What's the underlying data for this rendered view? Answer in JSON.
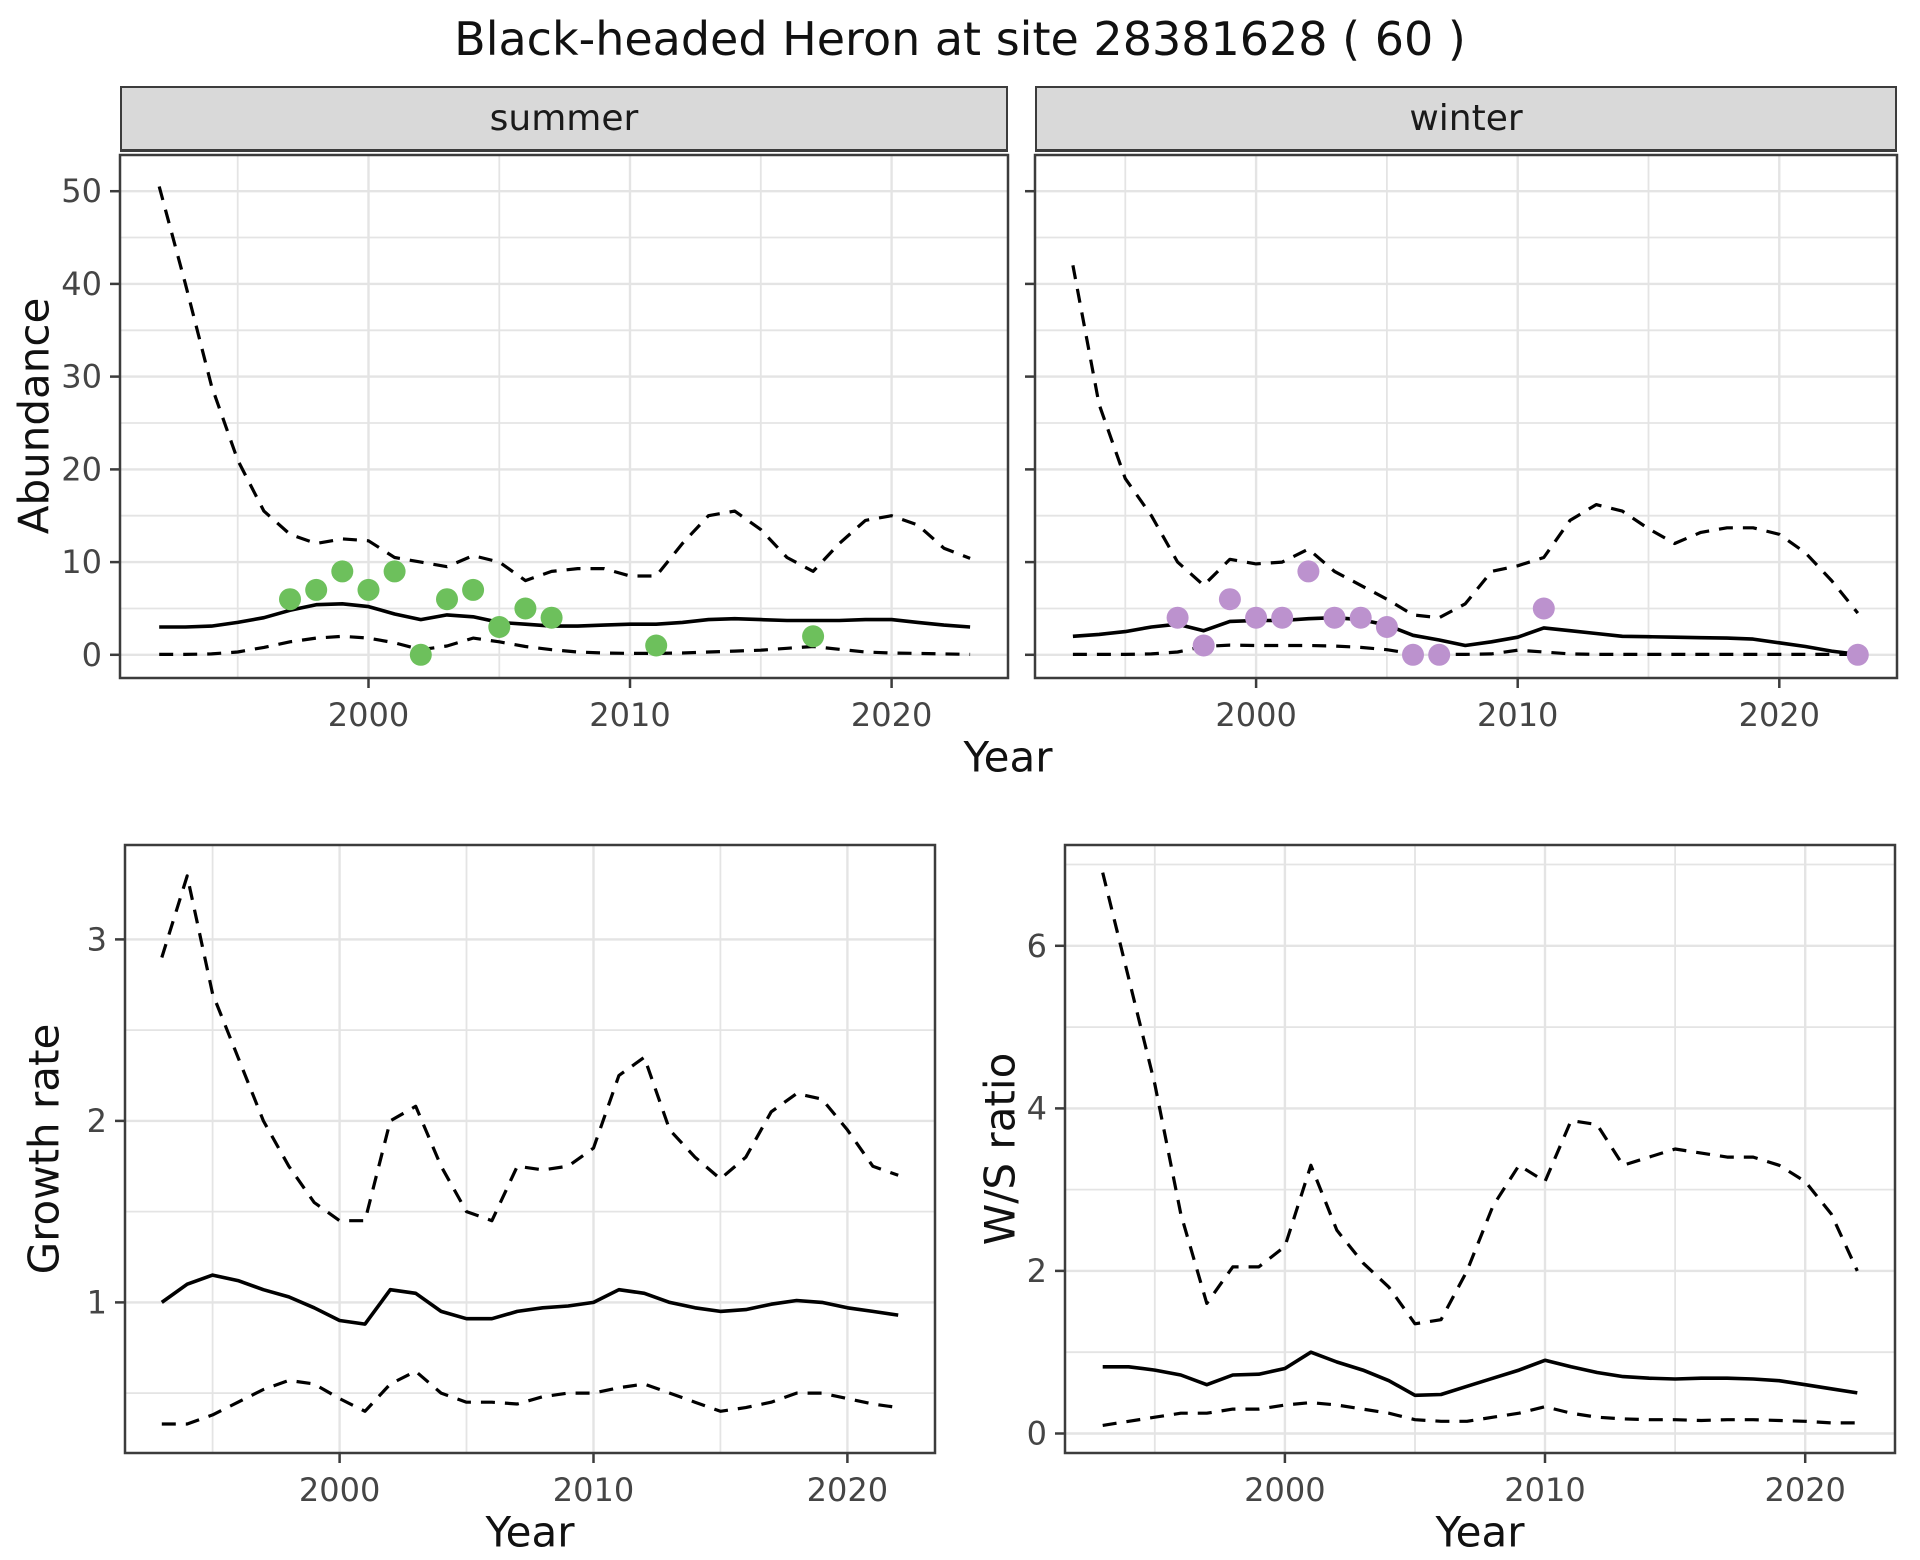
{
  "title": "Black-headed Heron at site 28381628 ( 60 )",
  "labels": {
    "year": "Year",
    "abundance": "Abundance",
    "growth_rate": "Growth rate",
    "ws_ratio": "W/S ratio",
    "facet_summer": "summer",
    "facet_winter": "winter"
  },
  "colors": {
    "summer_points": "#6DC05C",
    "winter_points": "#BC92CE",
    "line": "#000000",
    "grid": "#E4E4E4",
    "border": "#3C3C3C",
    "strip_bg": "#D9D9D9",
    "tick_label": "#454545",
    "strip_text": "#1A1A1A"
  },
  "chart_data": [
    {
      "name": "abundance-summer",
      "type": "line",
      "facet": "summer",
      "xlabel": "Year",
      "ylabel": "Abundance",
      "xlim": [
        1990.5,
        2024.45
      ],
      "ylim": [
        -2.5,
        53.9
      ],
      "xticks": [
        2000,
        2010,
        2020
      ],
      "yticks": [
        0,
        10,
        20,
        30,
        40,
        50
      ],
      "xminor": [
        1995,
        2005,
        2015
      ],
      "yminor": [
        5,
        15,
        25,
        35,
        45
      ],
      "show_ylabels": true,
      "x": [
        1992,
        1993,
        1994,
        1995,
        1996,
        1997,
        1998,
        1999,
        2000,
        2001,
        2002,
        2003,
        2004,
        2005,
        2006,
        2007,
        2008,
        2009,
        2010,
        2011,
        2012,
        2013,
        2014,
        2015,
        2016,
        2017,
        2018,
        2019,
        2020,
        2021,
        2022,
        2023
      ],
      "series": [
        {
          "name": "ci-upper",
          "style": "dashed",
          "values": [
            50.5,
            40,
            29,
            21,
            15.5,
            13,
            12,
            12.5,
            12.3,
            10.5,
            10,
            9.5,
            10.7,
            10,
            8,
            9,
            9.3,
            9.3,
            8.5,
            8.5,
            12,
            15,
            15.5,
            13.5,
            10.5,
            9,
            12,
            14.5,
            15,
            14,
            11.5,
            10.4
          ]
        },
        {
          "name": "median",
          "style": "solid",
          "values": [
            3.0,
            3.0,
            3.1,
            3.5,
            4.0,
            4.8,
            5.4,
            5.5,
            5.2,
            4.4,
            3.8,
            4.3,
            4.1,
            3.5,
            3.3,
            3.1,
            3.1,
            3.2,
            3.3,
            3.3,
            3.5,
            3.8,
            3.9,
            3.8,
            3.7,
            3.7,
            3.7,
            3.8,
            3.8,
            3.5,
            3.2,
            3.0
          ]
        },
        {
          "name": "ci-lower",
          "style": "dashed",
          "values": [
            0.05,
            0.05,
            0.1,
            0.3,
            0.8,
            1.4,
            1.8,
            2.0,
            1.8,
            1.3,
            0.55,
            0.95,
            1.8,
            1.4,
            0.9,
            0.55,
            0.3,
            0.2,
            0.15,
            0.15,
            0.2,
            0.3,
            0.4,
            0.5,
            0.7,
            0.9,
            0.6,
            0.3,
            0.2,
            0.15,
            0.1,
            0.05
          ]
        }
      ],
      "points": {
        "name": "observed-counts-summer",
        "color_key": "summer_points",
        "x": [
          1997,
          1998,
          1999,
          2000,
          2001,
          2002,
          2003,
          2004,
          2005,
          2006,
          2007,
          2011,
          2017
        ],
        "y": [
          6,
          7,
          9,
          7,
          9,
          0,
          6,
          7,
          3,
          5,
          4,
          1,
          2
        ]
      }
    },
    {
      "name": "abundance-winter",
      "type": "line",
      "facet": "winter",
      "xlabel": "Year",
      "ylabel": "Abundance",
      "xlim": [
        1991.55,
        2024.5
      ],
      "ylim": [
        -2.5,
        53.9
      ],
      "xticks": [
        2000,
        2010,
        2020
      ],
      "yticks": [
        0,
        10,
        20,
        30,
        40,
        50
      ],
      "xminor": [
        1995,
        2005,
        2015
      ],
      "yminor": [
        5,
        15,
        25,
        35,
        45
      ],
      "show_ylabels": false,
      "x": [
        1993,
        1994,
        1995,
        1996,
        1997,
        1998,
        1999,
        2000,
        2001,
        2002,
        2003,
        2004,
        2005,
        2006,
        2007,
        2008,
        2009,
        2010,
        2011,
        2012,
        2013,
        2014,
        2015,
        2016,
        2017,
        2018,
        2019,
        2020,
        2021,
        2022,
        2023
      ],
      "series": [
        {
          "name": "ci-upper",
          "style": "dashed",
          "values": [
            42,
            27,
            19,
            15,
            10,
            7.5,
            10.3,
            9.8,
            10,
            11.4,
            9,
            7.5,
            6,
            4.3,
            4,
            5.5,
            9,
            9.6,
            10.5,
            14.5,
            16.2,
            15.5,
            13.6,
            12,
            13.2,
            13.7,
            13.7,
            13,
            11,
            8,
            4.5
          ]
        },
        {
          "name": "median",
          "style": "solid",
          "values": [
            2.0,
            2.2,
            2.5,
            3.0,
            3.3,
            2.6,
            3.6,
            3.7,
            3.7,
            3.9,
            4.0,
            3.8,
            3.2,
            2.1,
            1.6,
            1.0,
            1.4,
            1.9,
            2.9,
            2.6,
            2.3,
            2.0,
            1.95,
            1.9,
            1.85,
            1.8,
            1.7,
            1.3,
            0.9,
            0.4,
            0.05
          ]
        },
        {
          "name": "ci-lower",
          "style": "dashed",
          "values": [
            0.05,
            0.05,
            0.05,
            0.1,
            0.3,
            0.9,
            1.05,
            1.0,
            1.0,
            1.0,
            0.95,
            0.8,
            0.55,
            0.1,
            0.05,
            0.05,
            0.1,
            0.5,
            0.3,
            0.1,
            0.05,
            0.05,
            0.05,
            0.05,
            0.05,
            0.05,
            0.05,
            0.05,
            0.05,
            0.05,
            0.05
          ]
        }
      ],
      "points": {
        "name": "observed-counts-winter",
        "color_key": "winter_points",
        "x": [
          1997,
          1998,
          1999,
          2000,
          2001,
          2002,
          2003,
          2004,
          2005,
          2006,
          2007,
          2011,
          2023
        ],
        "y": [
          4,
          1,
          6,
          4,
          4,
          9,
          4,
          4,
          3,
          0,
          0,
          5,
          0
        ]
      }
    },
    {
      "name": "growth-rate",
      "type": "line",
      "facet": "",
      "xlabel": "Year",
      "ylabel": "Growth rate",
      "xlim": [
        1991.55,
        2023.45
      ],
      "ylim": [
        0.17,
        3.52
      ],
      "xticks": [
        2000,
        2010,
        2020
      ],
      "yticks": [
        1,
        2,
        3
      ],
      "xminor": [
        1995,
        2005,
        2015
      ],
      "yminor": [
        0.5,
        1.5,
        2.5
      ],
      "show_ylabels": true,
      "x": [
        1993,
        1994,
        1995,
        1996,
        1997,
        1998,
        1999,
        2000,
        2001,
        2002,
        2003,
        2004,
        2005,
        2006,
        2007,
        2008,
        2009,
        2010,
        2011,
        2012,
        2013,
        2014,
        2015,
        2016,
        2017,
        2018,
        2019,
        2020,
        2021,
        2022
      ],
      "series": [
        {
          "name": "ci-upper",
          "style": "dashed",
          "values": [
            2.9,
            3.35,
            2.7,
            2.35,
            2.0,
            1.75,
            1.55,
            1.45,
            1.45,
            2.0,
            2.08,
            1.75,
            1.5,
            1.45,
            1.75,
            1.73,
            1.75,
            1.85,
            2.25,
            2.35,
            1.95,
            1.8,
            1.68,
            1.8,
            2.05,
            2.15,
            2.12,
            1.95,
            1.75,
            1.7
          ]
        },
        {
          "name": "median",
          "style": "solid",
          "values": [
            1.0,
            1.1,
            1.15,
            1.12,
            1.07,
            1.03,
            0.97,
            0.9,
            0.88,
            1.07,
            1.05,
            0.95,
            0.91,
            0.91,
            0.95,
            0.97,
            0.98,
            1.0,
            1.07,
            1.05,
            1.0,
            0.97,
            0.95,
            0.96,
            0.99,
            1.01,
            1.0,
            0.97,
            0.95,
            0.93
          ]
        },
        {
          "name": "ci-lower",
          "style": "dashed",
          "values": [
            0.33,
            0.33,
            0.38,
            0.45,
            0.52,
            0.57,
            0.55,
            0.47,
            0.4,
            0.55,
            0.62,
            0.5,
            0.45,
            0.45,
            0.44,
            0.48,
            0.5,
            0.5,
            0.53,
            0.55,
            0.5,
            0.45,
            0.4,
            0.42,
            0.45,
            0.5,
            0.5,
            0.47,
            0.44,
            0.42
          ]
        }
      ],
      "points": null
    },
    {
      "name": "ws-ratio",
      "type": "line",
      "facet": "",
      "xlabel": "Year",
      "ylabel": "W/S ratio",
      "xlim": [
        1991.55,
        2023.45
      ],
      "ylim": [
        -0.24,
        7.24
      ],
      "xticks": [
        2000,
        2010,
        2020
      ],
      "yticks": [
        0,
        2,
        4,
        6
      ],
      "xminor": [
        1995,
        2005,
        2015
      ],
      "yminor": [
        1,
        3,
        5,
        7
      ],
      "show_ylabels": true,
      "x": [
        1993,
        1994,
        1995,
        1996,
        1997,
        1998,
        1999,
        2000,
        2001,
        2002,
        2003,
        2004,
        2005,
        2006,
        2007,
        2008,
        2009,
        2010,
        2011,
        2012,
        2013,
        2014,
        2015,
        2016,
        2017,
        2018,
        2019,
        2020,
        2021,
        2022
      ],
      "series": [
        {
          "name": "ci-upper",
          "style": "dashed",
          "values": [
            6.9,
            5.6,
            4.3,
            2.7,
            1.6,
            2.05,
            2.05,
            2.3,
            3.3,
            2.5,
            2.1,
            1.8,
            1.35,
            1.4,
            2.0,
            2.8,
            3.3,
            3.1,
            3.85,
            3.8,
            3.3,
            3.4,
            3.5,
            3.45,
            3.4,
            3.4,
            3.3,
            3.1,
            2.7,
            2.0
          ]
        },
        {
          "name": "median",
          "style": "solid",
          "values": [
            0.82,
            0.82,
            0.78,
            0.72,
            0.6,
            0.72,
            0.73,
            0.8,
            1.0,
            0.88,
            0.78,
            0.65,
            0.47,
            0.48,
            0.58,
            0.68,
            0.78,
            0.9,
            0.82,
            0.75,
            0.7,
            0.68,
            0.67,
            0.68,
            0.68,
            0.67,
            0.65,
            0.6,
            0.55,
            0.5
          ]
        },
        {
          "name": "ci-lower",
          "style": "dashed",
          "values": [
            0.1,
            0.15,
            0.2,
            0.25,
            0.25,
            0.3,
            0.3,
            0.35,
            0.38,
            0.35,
            0.3,
            0.25,
            0.17,
            0.15,
            0.15,
            0.2,
            0.25,
            0.33,
            0.25,
            0.2,
            0.18,
            0.17,
            0.17,
            0.16,
            0.17,
            0.17,
            0.16,
            0.15,
            0.13,
            0.13
          ]
        }
      ],
      "points": null
    }
  ]
}
